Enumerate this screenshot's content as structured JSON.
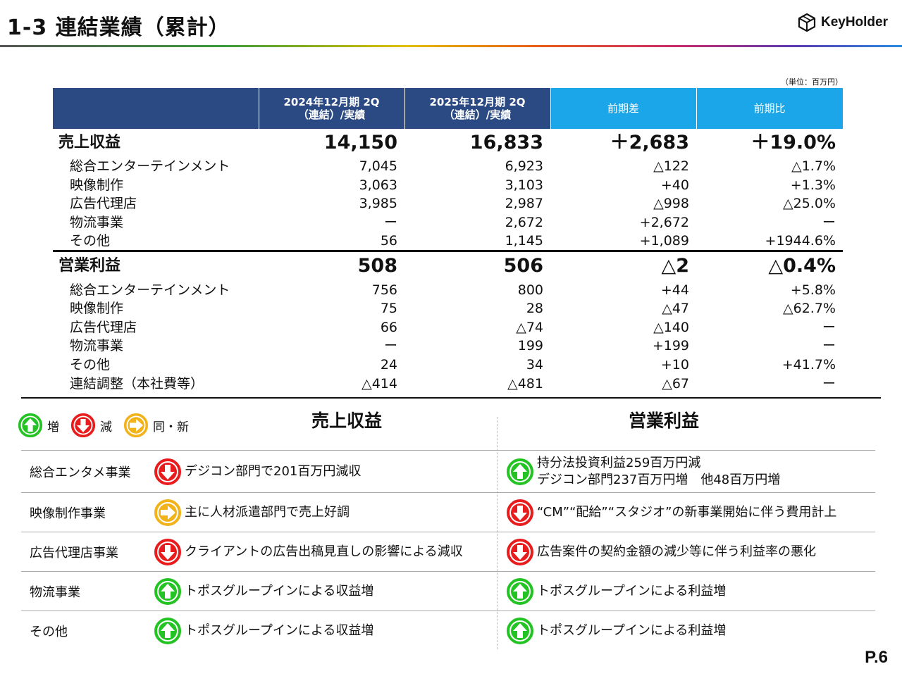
{
  "header": {
    "title": "1-3  連結業績（累計）",
    "logo_text": "KeyHolder"
  },
  "unit_note": "（単位：百万円）",
  "table": {
    "columns": [
      "",
      "2024年12月期 2Q\n（連結）/実績",
      "2025年12月期 2Q\n（連結）/実績",
      "前期差",
      "前期比"
    ],
    "rows": [
      {
        "type": "main",
        "cells": [
          "売上収益",
          "14,150",
          "16,833",
          "＋2,683",
          "＋19.0%"
        ]
      },
      {
        "type": "sub",
        "cells": [
          "総合エンターテインメント",
          "7,045",
          "6,923",
          "△122",
          "△1.7%"
        ]
      },
      {
        "type": "sub",
        "cells": [
          "映像制作",
          "3,063",
          "3,103",
          "+40",
          "+1.3%"
        ]
      },
      {
        "type": "sub",
        "cells": [
          "広告代理店",
          "3,985",
          "2,987",
          "△998",
          "△25.0%"
        ]
      },
      {
        "type": "sub",
        "cells": [
          "物流事業",
          "ー",
          "2,672",
          "+2,672",
          "ー"
        ]
      },
      {
        "type": "sub",
        "cells": [
          "その他",
          "56",
          "1,145",
          "+1,089",
          "+1944.6%"
        ]
      },
      {
        "type": "main",
        "cells": [
          "営業利益",
          "508",
          "506",
          "△2",
          "△0.4%"
        ]
      },
      {
        "type": "sub",
        "cells": [
          "総合エンターテインメント",
          "756",
          "800",
          "+44",
          "+5.8%"
        ]
      },
      {
        "type": "sub",
        "cells": [
          "映像制作",
          "75",
          "28",
          "△47",
          "△62.7%"
        ]
      },
      {
        "type": "sub",
        "cells": [
          "広告代理店",
          "66",
          "△74",
          "△140",
          "ー"
        ]
      },
      {
        "type": "sub",
        "cells": [
          "物流事業",
          "ー",
          "199",
          "+199",
          "ー"
        ]
      },
      {
        "type": "sub",
        "cells": [
          "その他",
          "24",
          "34",
          "+10",
          "+41.7%"
        ]
      },
      {
        "type": "sub",
        "cells": [
          "連結調整（本社費等）",
          "△414",
          "△481",
          "△67",
          "ー"
        ]
      }
    ]
  },
  "legend": {
    "up": "増",
    "down": "減",
    "same": "同・新"
  },
  "sections": {
    "revenue": "売上収益",
    "profit": "営業利益"
  },
  "breakdown": [
    {
      "segment": "総合エンタメ事業",
      "rev_icon": "down",
      "rev_text": "デジコン部門で201百万円減収",
      "op_icon": "up",
      "op_text": "持分法投資利益259百万円減\nデジコン部門237百万円増　他48百万円増"
    },
    {
      "segment": "映像制作事業",
      "rev_icon": "same",
      "rev_text": "主に人材派遣部門で売上好調",
      "op_icon": "down",
      "op_text": "“CM”“配給”“スタジオ”の新事業開始に伴う費用計上"
    },
    {
      "segment": "広告代理店事業",
      "rev_icon": "down",
      "rev_text": "クライアントの広告出稿見直しの影響による減収",
      "op_icon": "down",
      "op_text": "広告案件の契約金額の減少等に伴う利益率の悪化"
    },
    {
      "segment": "物流事業",
      "rev_icon": "up",
      "rev_text": "トポスグループインによる収益増",
      "op_icon": "up",
      "op_text": "トポスグループインによる利益増"
    },
    {
      "segment": "その他",
      "rev_icon": "up",
      "rev_text": "トポスグループインによる収益増",
      "op_icon": "up",
      "op_text": "トポスグループインによる利益増"
    }
  ],
  "icon_colors": {
    "up": "#22c322",
    "down": "#e81c1c",
    "same": "#f2b21a"
  },
  "page_number": "P.6"
}
